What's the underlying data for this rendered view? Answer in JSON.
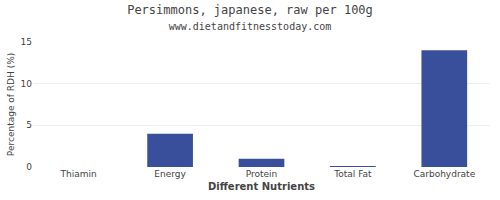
{
  "chart_data": {
    "type": "bar",
    "title": "Persimmons, japanese, raw per 100g",
    "subtitle": "www.dietandfitnesstoday.com",
    "xlabel": "Different Nutrients",
    "ylabel": "Percentage of RDH (%)",
    "categories": [
      "Thiamin",
      "Energy",
      "Protein",
      "Total Fat",
      "Carbohydrate"
    ],
    "values": [
      0.0,
      4.0,
      1.0,
      0.1,
      14.0
    ],
    "color": "#3a4f9b",
    "ylim": [
      0,
      15
    ],
    "yticks": [
      0,
      5,
      10,
      15
    ],
    "grid": true
  }
}
